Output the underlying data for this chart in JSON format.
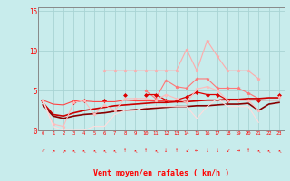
{
  "xlabel": "Vent moyen/en rafales ( km/h )",
  "background_color": "#c8ecec",
  "grid_color": "#a8d4d4",
  "x_values": [
    0,
    1,
    2,
    3,
    4,
    5,
    6,
    7,
    8,
    9,
    10,
    11,
    12,
    13,
    14,
    15,
    16,
    17,
    18,
    19,
    20,
    21,
    22,
    23
  ],
  "ylim": [
    0,
    15.5
  ],
  "yticks": [
    0,
    5,
    10,
    15
  ],
  "series": [
    {
      "color": "#ffaaaa",
      "linewidth": 0.8,
      "marker": "*",
      "markersize": 2.5,
      "data": [
        null,
        null,
        null,
        null,
        null,
        null,
        7.5,
        7.5,
        7.5,
        7.5,
        7.5,
        7.5,
        7.5,
        7.5,
        10.2,
        7.5,
        11.3,
        9.3,
        7.5,
        7.5,
        7.5,
        6.5,
        null,
        null
      ]
    },
    {
      "color": "#ff7777",
      "linewidth": 0.8,
      "marker": "*",
      "markersize": 2.5,
      "data": [
        null,
        null,
        null,
        null,
        null,
        null,
        null,
        null,
        null,
        null,
        5.0,
        4.0,
        6.3,
        5.5,
        5.3,
        6.5,
        6.5,
        5.3,
        5.3,
        5.3,
        4.7,
        4.0,
        null,
        null
      ]
    },
    {
      "color": "#dd0000",
      "linewidth": 0.9,
      "marker": "D",
      "markersize": 2.0,
      "data": [
        3.8,
        null,
        null,
        3.5,
        3.8,
        null,
        3.8,
        null,
        4.5,
        null,
        4.5,
        4.5,
        3.8,
        3.8,
        4.2,
        4.8,
        4.5,
        4.5,
        3.8,
        null,
        null,
        3.8,
        null,
        4.5
      ]
    },
    {
      "color": "#ff4444",
      "linewidth": 0.8,
      "marker": null,
      "data": [
        3.8,
        3.3,
        3.2,
        3.7,
        3.7,
        3.6,
        3.6,
        3.6,
        3.8,
        3.7,
        3.7,
        3.7,
        3.7,
        3.8,
        3.8,
        3.8,
        3.8,
        3.8,
        3.8,
        3.8,
        3.8,
        3.8,
        3.8,
        3.8
      ]
    },
    {
      "color": "#cc0000",
      "linewidth": 1.2,
      "marker": null,
      "data": [
        3.5,
        2.0,
        1.8,
        2.2,
        2.5,
        2.7,
        2.9,
        3.1,
        3.2,
        3.3,
        3.4,
        3.5,
        3.5,
        3.6,
        3.6,
        3.7,
        3.8,
        3.8,
        3.9,
        3.9,
        4.0,
        4.0,
        4.1,
        4.1
      ]
    },
    {
      "color": "#880000",
      "linewidth": 1.2,
      "marker": null,
      "data": [
        3.2,
        1.8,
        1.5,
        1.8,
        2.0,
        2.1,
        2.2,
        2.4,
        2.5,
        2.6,
        2.7,
        2.8,
        2.9,
        3.0,
        3.0,
        3.1,
        3.1,
        3.2,
        3.3,
        3.3,
        3.4,
        2.5,
        3.3,
        3.5
      ]
    },
    {
      "color": "#ffbbbb",
      "linewidth": 0.8,
      "marker": "*",
      "markersize": 2.5,
      "data": [
        3.8,
        0.8,
        0.5,
        3.5,
        3.8,
        2.0,
        3.2,
        2.5,
        4.0,
        4.0,
        4.0,
        3.8,
        4.5,
        4.0,
        3.5,
        5.2,
        5.5,
        5.0,
        3.8,
        3.8,
        3.8,
        2.5,
        null,
        4.2
      ]
    },
    {
      "color": "#ffdddd",
      "linewidth": 0.8,
      "marker": null,
      "data": [
        3.8,
        0.5,
        0.0,
        0.0,
        0.0,
        0.5,
        0.5,
        2.0,
        2.5,
        2.5,
        3.0,
        3.0,
        3.0,
        3.0,
        3.0,
        1.5,
        3.0,
        4.0,
        3.0,
        3.0,
        3.0,
        1.0,
        null,
        4.0
      ]
    }
  ],
  "wind_arrows": [
    "↙",
    "↗",
    "↗",
    "↖",
    "↖",
    "↖",
    "↖",
    "↖",
    "↑",
    "↖",
    "↑",
    "↖",
    "↓",
    "↑",
    "↙",
    "←",
    "↓",
    "↓",
    "↙",
    "→",
    "↑",
    "↖",
    "↖",
    "↖"
  ]
}
